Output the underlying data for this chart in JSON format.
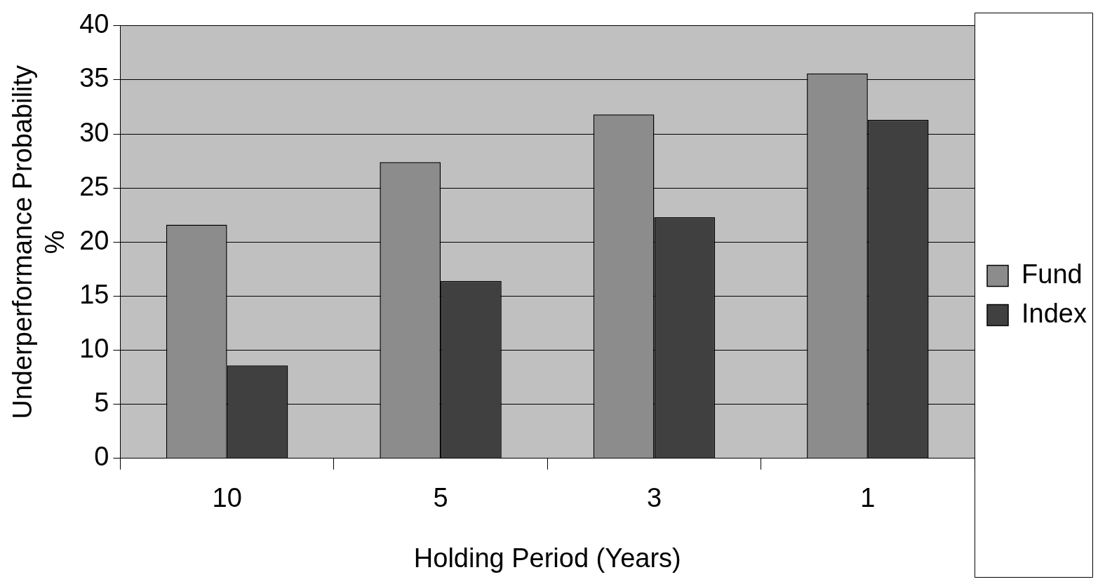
{
  "chart_data": {
    "type": "bar",
    "xlabel": "Holding Period (Years)",
    "ylabel": "Underperformance Probability %",
    "categories": [
      "10",
      "5",
      "3",
      "1"
    ],
    "series": [
      {
        "name": "Fund",
        "color": "#8c8c8c",
        "values": [
          21.6,
          27.4,
          31.8,
          35.6
        ]
      },
      {
        "name": "Index",
        "color": "#404040",
        "values": [
          8.6,
          16.4,
          22.3,
          31.3
        ]
      }
    ],
    "ylim": [
      0,
      40
    ],
    "yticks": [
      0,
      5,
      10,
      15,
      20,
      25,
      30,
      35,
      40
    ],
    "grid": "y",
    "legend": "right"
  }
}
